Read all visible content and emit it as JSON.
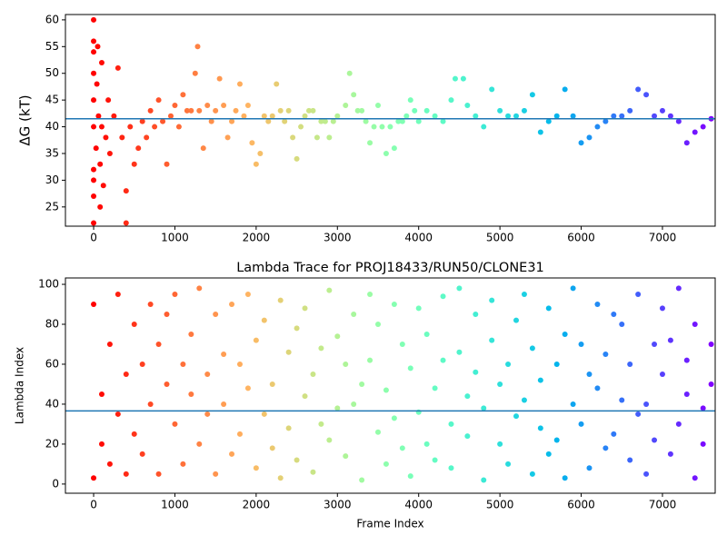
{
  "chart_data": [
    {
      "type": "scatter",
      "ylabel": "ΔG (kT)",
      "colormap": "rainbow_r",
      "axhline": 41.5,
      "axhline_color": "#1f77b4",
      "xlim": [
        -347,
        7649
      ],
      "ylim": [
        21.4,
        61.0
      ],
      "xticks": [
        0,
        1000,
        2000,
        3000,
        4000,
        5000,
        6000,
        7000
      ],
      "yticks": [
        25,
        30,
        35,
        40,
        45,
        50,
        55,
        60
      ],
      "x": [
        0,
        0,
        0,
        0,
        0,
        0,
        0,
        0,
        0,
        0,
        30,
        40,
        50,
        60,
        80,
        80,
        100,
        100,
        120,
        150,
        180,
        200,
        250,
        300,
        350,
        400,
        400,
        450,
        500,
        550,
        600,
        650,
        700,
        750,
        800,
        850,
        900,
        950,
        1000,
        1050,
        1100,
        1150,
        1200,
        1250,
        1280,
        1300,
        1350,
        1400,
        1450,
        1500,
        1550,
        1600,
        1650,
        1700,
        1750,
        1800,
        1850,
        1900,
        1950,
        2000,
        2050,
        2100,
        2150,
        2200,
        2250,
        2300,
        2350,
        2400,
        2450,
        2500,
        2550,
        2600,
        2650,
        2700,
        2750,
        2800,
        2850,
        2900,
        2950,
        3000,
        3100,
        3150,
        3200,
        3250,
        3300,
        3350,
        3400,
        3450,
        3500,
        3550,
        3600,
        3650,
        3700,
        3750,
        3800,
        3850,
        3900,
        3950,
        4000,
        4100,
        4200,
        4300,
        4400,
        4450,
        4550,
        4600,
        4700,
        4800,
        4900,
        5000,
        5100,
        5200,
        5300,
        5400,
        5500,
        5600,
        5700,
        5800,
        5900,
        6000,
        6100,
        6200,
        6300,
        6400,
        6500,
        6600,
        6700,
        6800,
        6900,
        7000,
        7100,
        7200,
        7300,
        7400,
        7500,
        7600
      ],
      "y": [
        22,
        27,
        30,
        32,
        40,
        45,
        50,
        54,
        56,
        60,
        36,
        48,
        55,
        42,
        25,
        33,
        40,
        52,
        29,
        38,
        45,
        35,
        42,
        51,
        38,
        22,
        28,
        40,
        33,
        36,
        41,
        38,
        43,
        40,
        45,
        41,
        33,
        42,
        44,
        40,
        46,
        43,
        43,
        50,
        55,
        43,
        36,
        44,
        41,
        43,
        49,
        44,
        38,
        41,
        43,
        48,
        42,
        44,
        37,
        33,
        35,
        42,
        41,
        42,
        48,
        43,
        41,
        43,
        38,
        34,
        40,
        42,
        43,
        43,
        38,
        41,
        41,
        38,
        41,
        42,
        44,
        50,
        46,
        43,
        43,
        41,
        37,
        40,
        44,
        40,
        35,
        40,
        36,
        41,
        41,
        42,
        45,
        43,
        41,
        43,
        42,
        41,
        45,
        49,
        49,
        44,
        42,
        40,
        47,
        43,
        42,
        42,
        43,
        46,
        39,
        41,
        42,
        47,
        42,
        37,
        38,
        40,
        41,
        42,
        42,
        43,
        47,
        46,
        42,
        43,
        42,
        41,
        37,
        39,
        40,
        41.5
      ]
    },
    {
      "type": "scatter",
      "title": "Lambda Trace for PROJ18433/RUN50/CLONE31",
      "xlabel": "Frame Index",
      "ylabel": "Lambda Index",
      "colormap": "rainbow_r",
      "axhline": 36.6,
      "axhline_color": "#1f77b4",
      "xlim": [
        -347,
        7649
      ],
      "ylim": [
        -4.6,
        103.2
      ],
      "xticks": [
        0,
        1000,
        2000,
        3000,
        4000,
        5000,
        6000,
        7000
      ],
      "yticks": [
        0,
        20,
        40,
        60,
        80,
        100
      ],
      "x": [
        0,
        0,
        100,
        100,
        200,
        200,
        300,
        300,
        400,
        400,
        500,
        500,
        600,
        600,
        700,
        700,
        800,
        800,
        900,
        900,
        1000,
        1000,
        1100,
        1100,
        1200,
        1200,
        1300,
        1300,
        1400,
        1400,
        1500,
        1500,
        1600,
        1600,
        1700,
        1700,
        1800,
        1800,
        1900,
        1900,
        2000,
        2000,
        2100,
        2100,
        2200,
        2200,
        2300,
        2300,
        2400,
        2400,
        2500,
        2500,
        2600,
        2600,
        2700,
        2700,
        2800,
        2800,
        2900,
        2900,
        3000,
        3000,
        3100,
        3100,
        3200,
        3200,
        3300,
        3300,
        3400,
        3400,
        3500,
        3500,
        3600,
        3600,
        3700,
        3700,
        3800,
        3800,
        3900,
        3900,
        4000,
        4000,
        4100,
        4100,
        4200,
        4200,
        4300,
        4300,
        4400,
        4400,
        4500,
        4500,
        4600,
        4600,
        4700,
        4700,
        4800,
        4800,
        4900,
        4900,
        5000,
        5000,
        5100,
        5100,
        5200,
        5200,
        5300,
        5300,
        5400,
        5400,
        5500,
        5500,
        5600,
        5600,
        5700,
        5700,
        5800,
        5800,
        5900,
        5900,
        6000,
        6000,
        6100,
        6100,
        6200,
        6200,
        6300,
        6300,
        6400,
        6400,
        6500,
        6500,
        6600,
        6600,
        6700,
        6700,
        6800,
        6800,
        6900,
        6900,
        7000,
        7000,
        7100,
        7100,
        7200,
        7200,
        7300,
        7300,
        7400,
        7400,
        7500,
        7500,
        7600,
        7600
      ],
      "y": [
        3,
        90,
        45,
        20,
        70,
        10,
        95,
        35,
        55,
        5,
        25,
        80,
        60,
        15,
        90,
        40,
        5,
        70,
        50,
        85,
        30,
        95,
        10,
        60,
        75,
        45,
        20,
        98,
        55,
        35,
        85,
        5,
        40,
        65,
        15,
        90,
        60,
        25,
        95,
        48,
        8,
        72,
        35,
        82,
        50,
        18,
        92,
        3,
        28,
        66,
        78,
        12,
        44,
        88,
        6,
        55,
        68,
        30,
        97,
        22,
        38,
        74,
        14,
        60,
        85,
        40,
        2,
        50,
        62,
        95,
        26,
        80,
        47,
        10,
        90,
        33,
        18,
        70,
        58,
        4,
        36,
        88,
        75,
        20,
        12,
        48,
        94,
        62,
        30,
        8,
        66,
        98,
        44,
        24,
        85,
        56,
        2,
        38,
        72,
        92,
        20,
        50,
        60,
        10,
        34,
        82,
        95,
        42,
        5,
        68,
        52,
        28,
        88,
        15,
        22,
        60,
        75,
        3,
        98,
        40,
        30,
        70,
        8,
        55,
        48,
        90,
        65,
        18,
        25,
        85,
        80,
        42,
        12,
        60,
        95,
        35,
        40,
        5,
        70,
        22,
        55,
        88,
        15,
        72,
        98,
        30,
        45,
        62,
        3,
        80,
        38,
        20,
        50,
        70
      ]
    }
  ]
}
